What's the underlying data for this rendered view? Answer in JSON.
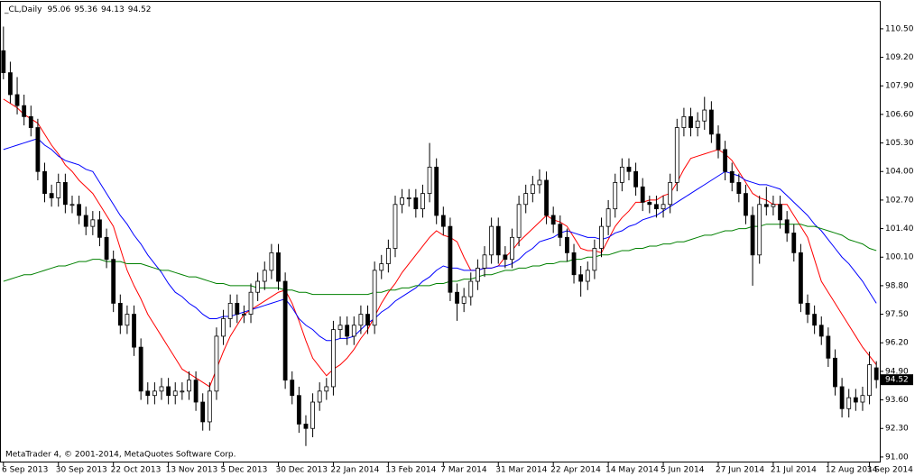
{
  "chart_data": {
    "type": "candlestick",
    "title": "_CL,Daily",
    "footer": "MetaTrader 4, © 2001-2014, MetaQuotes Software Corp.",
    "categories": [
      "6 Sep 2013",
      null,
      null,
      null,
      null,
      null,
      null,
      null,
      "30 Sep 2013",
      null,
      null,
      null,
      null,
      null,
      null,
      null,
      "22 Oct 2013",
      null,
      null,
      null,
      null,
      null,
      null,
      null,
      "13 Nov 2013",
      null,
      null,
      null,
      null,
      null,
      null,
      null,
      "5 Dec 2013",
      null,
      null,
      null,
      null,
      null,
      null,
      null,
      "30 Dec 2013",
      null,
      null,
      null,
      null,
      null,
      null,
      null,
      "22 Jan 2014",
      null,
      null,
      null,
      null,
      null,
      null,
      null,
      "13 Feb 2014",
      null,
      null,
      null,
      null,
      null,
      null,
      null,
      "7 Mar 2014",
      null,
      null,
      null,
      null,
      null,
      null,
      null,
      "31 Mar 2014",
      null,
      null,
      null,
      null,
      null,
      null,
      null,
      "22 Apr 2014",
      null,
      null,
      null,
      null,
      null,
      null,
      null,
      "14 May 2014",
      null,
      null,
      null,
      null,
      null,
      null,
      null,
      "5 Jun 2014",
      null,
      null,
      null,
      null,
      null,
      null,
      null,
      "27 Jun 2014",
      null,
      null,
      null,
      null,
      null,
      null,
      null,
      "21 Jul 2014",
      null,
      null,
      null,
      null,
      null,
      null,
      null,
      "12 Aug 2014",
      null,
      null,
      null,
      null,
      null,
      "3 Sep 2014",
      null
    ],
    "candles": [
      [
        109.5,
        110.6,
        108.2,
        108.5
      ],
      [
        108.5,
        109,
        107.1,
        107.5
      ],
      [
        107.5,
        108.3,
        106.6,
        107
      ],
      [
        107,
        107.5,
        106.1,
        106.5
      ],
      [
        106.5,
        107,
        105.6,
        106
      ],
      [
        106,
        106.4,
        103.6,
        104
      ],
      [
        104,
        104.4,
        102.6,
        103
      ],
      [
        103,
        103.4,
        102.4,
        102.8
      ],
      [
        102.8,
        103.9,
        102.4,
        103.5
      ],
      [
        103.5,
        103.9,
        102.1,
        102.5
      ],
      [
        102.5,
        102.9,
        102.1,
        102.5
      ],
      [
        102.5,
        102.9,
        101.6,
        102
      ],
      [
        102,
        102.4,
        101.1,
        101.5
      ],
      [
        101.5,
        102.2,
        101.1,
        101.8
      ],
      [
        101.8,
        102.2,
        100.6,
        101
      ],
      [
        101,
        101.4,
        99.6,
        100
      ],
      [
        100,
        100.4,
        97.6,
        98
      ],
      [
        98,
        98.4,
        96.6,
        97
      ],
      [
        97,
        97.9,
        96.6,
        97.5
      ],
      [
        97.5,
        97.9,
        95.6,
        96
      ],
      [
        96,
        96.4,
        93.6,
        94
      ],
      [
        94,
        94.4,
        93.4,
        93.8
      ],
      [
        93.8,
        94.4,
        93.4,
        94
      ],
      [
        94,
        94.6,
        93.6,
        94.2
      ],
      [
        94.2,
        94.6,
        93.4,
        93.8
      ],
      [
        93.8,
        94.4,
        93.4,
        94
      ],
      [
        94,
        94.4,
        93.6,
        94
      ],
      [
        94,
        94.9,
        93.6,
        94.5
      ],
      [
        94.5,
        94.9,
        93.1,
        93.5
      ],
      [
        93.5,
        93.9,
        92.2,
        92.6
      ],
      [
        92.6,
        94.4,
        92.2,
        94
      ],
      [
        94,
        96.9,
        93.6,
        96.5
      ],
      [
        96.5,
        97.7,
        96.1,
        97.3
      ],
      [
        97.3,
        98.4,
        96.9,
        98
      ],
      [
        98,
        98.4,
        97.1,
        97.5
      ],
      [
        97.5,
        97.9,
        97.1,
        97.5
      ],
      [
        97.5,
        98.9,
        97.1,
        98.5
      ],
      [
        98.5,
        99.4,
        98.1,
        99
      ],
      [
        99,
        99.9,
        98.6,
        99.5
      ],
      [
        99.5,
        100.7,
        99.1,
        100.3
      ],
      [
        100.3,
        100.7,
        98.6,
        99
      ],
      [
        99,
        99.4,
        94.1,
        94.5
      ],
      [
        94.5,
        94.9,
        93.4,
        93.8
      ],
      [
        93.8,
        94.2,
        92.1,
        92.5
      ],
      [
        92.5,
        92.9,
        91.5,
        92.3
      ],
      [
        92.3,
        93.9,
        91.9,
        93.5
      ],
      [
        93.5,
        94.4,
        93.1,
        94
      ],
      [
        94,
        94.6,
        93.6,
        94.2
      ],
      [
        94.2,
        97.2,
        93.8,
        96.8
      ],
      [
        96.8,
        97.4,
        96.4,
        97
      ],
      [
        97,
        97.4,
        96.1,
        96.5
      ],
      [
        96.5,
        97.4,
        96.1,
        97
      ],
      [
        97,
        97.9,
        96.6,
        97.5
      ],
      [
        97.5,
        97.9,
        96.6,
        97
      ],
      [
        97,
        99.9,
        96.6,
        99.5
      ],
      [
        99.5,
        100.2,
        99.1,
        99.8
      ],
      [
        99.8,
        100.9,
        99.4,
        100.5
      ],
      [
        100.5,
        102.9,
        100.1,
        102.5
      ],
      [
        102.5,
        103.2,
        102.1,
        102.8
      ],
      [
        102.8,
        103.2,
        102.4,
        102.8
      ],
      [
        102.8,
        103.2,
        101.9,
        102.3
      ],
      [
        102.3,
        103.4,
        101.9,
        103
      ],
      [
        103,
        105.3,
        102.6,
        104.2
      ],
      [
        104.2,
        104.6,
        101.6,
        102
      ],
      [
        102,
        102.4,
        101.1,
        101.5
      ],
      [
        101.5,
        101.9,
        98.1,
        98.5
      ],
      [
        98.5,
        98.9,
        97.2,
        98
      ],
      [
        98,
        98.7,
        97.6,
        98.3
      ],
      [
        98.3,
        99.4,
        97.9,
        99
      ],
      [
        99,
        100,
        98.6,
        99.6
      ],
      [
        99.6,
        100.6,
        99.2,
        100.2
      ],
      [
        100.2,
        101.9,
        99.8,
        101.5
      ],
      [
        101.5,
        101.9,
        99.8,
        100.2
      ],
      [
        100.2,
        100.6,
        99.6,
        100
      ],
      [
        100,
        101.4,
        99.6,
        101
      ],
      [
        101,
        102.9,
        100.6,
        102.5
      ],
      [
        102.5,
        103.4,
        102.1,
        103
      ],
      [
        103,
        103.8,
        102.6,
        103.4
      ],
      [
        103.4,
        104.1,
        103,
        103.6
      ],
      [
        103.6,
        104,
        101.6,
        102
      ],
      [
        102,
        102.4,
        101.2,
        101.6
      ],
      [
        101.6,
        102,
        100.6,
        101
      ],
      [
        101,
        101.4,
        99.9,
        100.3
      ],
      [
        100.3,
        100.7,
        98.9,
        99.3
      ],
      [
        99.3,
        99.7,
        98.3,
        99
      ],
      [
        99,
        99.9,
        98.6,
        99.5
      ],
      [
        99.5,
        100.9,
        99.1,
        100.5
      ],
      [
        100.5,
        101.9,
        100.1,
        101.5
      ],
      [
        101.5,
        102.7,
        101.1,
        102.3
      ],
      [
        102.3,
        103.9,
        101.9,
        103.5
      ],
      [
        103.5,
        104.6,
        103.1,
        104.2
      ],
      [
        104.2,
        104.6,
        103.6,
        104
      ],
      [
        104,
        104.4,
        102.9,
        103.3
      ],
      [
        103.3,
        103.7,
        102.2,
        102.6
      ],
      [
        102.6,
        102.9,
        102.1,
        102.5
      ],
      [
        102.5,
        102.9,
        101.9,
        102.3
      ],
      [
        102.3,
        102.9,
        101.9,
        102.5
      ],
      [
        102.5,
        103.9,
        102.1,
        103.5
      ],
      [
        103.5,
        106.4,
        103.1,
        106
      ],
      [
        106,
        106.9,
        105.6,
        106.5
      ],
      [
        106.5,
        106.9,
        105.6,
        106
      ],
      [
        106,
        106.7,
        105.6,
        106.3
      ],
      [
        106.3,
        107.4,
        105.9,
        106.8
      ],
      [
        106.8,
        107.2,
        105.3,
        105.7
      ],
      [
        105.7,
        106.1,
        104.6,
        105
      ],
      [
        105,
        105.4,
        103.6,
        104
      ],
      [
        104,
        104.4,
        103.1,
        103.5
      ],
      [
        103.5,
        103.9,
        102.6,
        103
      ],
      [
        103,
        103.4,
        101.6,
        102
      ],
      [
        102,
        102.4,
        98.8,
        100.2
      ],
      [
        100.2,
        102.9,
        99.8,
        102.5
      ],
      [
        102.5,
        103.3,
        102,
        102.4
      ],
      [
        102.4,
        102.9,
        102,
        102.5
      ],
      [
        102.5,
        102.9,
        101.4,
        101.8
      ],
      [
        101.8,
        102.2,
        100.8,
        101.2
      ],
      [
        101.2,
        101.6,
        99.9,
        100.3
      ],
      [
        100.3,
        100.7,
        97.6,
        98
      ],
      [
        98,
        98.4,
        97.1,
        97.5
      ],
      [
        97.5,
        97.9,
        96.6,
        97
      ],
      [
        97,
        97.4,
        96.1,
        96.5
      ],
      [
        96.5,
        96.9,
        95.1,
        95.5
      ],
      [
        95.5,
        95.9,
        93.8,
        94.2
      ],
      [
        94.2,
        94.6,
        92.8,
        93.2
      ],
      [
        93.2,
        94.1,
        92.8,
        93.7
      ],
      [
        93.7,
        94.1,
        93.1,
        93.5
      ],
      [
        93.5,
        94.2,
        93.1,
        93.8
      ],
      [
        93.8,
        95.8,
        93.4,
        95.2
      ],
      [
        95.06,
        95.36,
        94.13,
        94.52
      ]
    ],
    "series": [
      {
        "color": "#ff0000",
        "values": [
          107.3,
          107.1,
          106.9,
          106.6,
          106.4,
          106.2,
          105.7,
          105.2,
          104.8,
          104.3,
          104,
          103.6,
          103.3,
          103,
          102.5,
          102,
          101.5,
          100.5,
          99.5,
          98.8,
          98.2,
          97.5,
          97,
          96.5,
          96,
          95.5,
          95,
          94.8,
          94.6,
          94.4,
          94.2,
          95,
          95.8,
          96.5,
          97,
          97.5,
          97.7,
          97.9,
          98.1,
          98.3,
          98.5,
          98.6,
          98,
          97.2,
          96.3,
          95.5,
          95.1,
          94.7,
          95,
          95.2,
          95.5,
          95.9,
          96.4,
          96.8,
          97.4,
          98,
          98.5,
          98.9,
          99.4,
          99.8,
          100.2,
          100.6,
          101,
          101.3,
          101.1,
          101,
          100.8,
          100.1,
          99.5,
          99.5,
          99.6,
          99.6,
          99.7,
          100.1,
          100.4,
          100.8,
          101.1,
          101.4,
          101.7,
          102,
          101.8,
          101.7,
          101.5,
          101,
          100.5,
          100.4,
          100.4,
          100.3,
          100.9,
          101.5,
          101.9,
          102.2,
          102.6,
          102.6,
          102.7,
          102.7,
          102.9,
          103,
          103.5,
          104.1,
          104.6,
          104.7,
          104.8,
          104.9,
          105,
          104.8,
          104.5,
          104,
          103.5,
          103,
          102.8,
          102.7,
          102.5,
          102.5,
          102.5,
          102,
          101.5,
          101,
          100,
          99,
          98.5,
          98,
          97.5,
          97,
          96.5,
          96,
          95.6,
          95.2
        ]
      },
      {
        "color": "#0000ff",
        "values": [
          105,
          105.1,
          105.2,
          105.3,
          105.4,
          105.5,
          105.2,
          105,
          104.7,
          104.5,
          104.4,
          104.3,
          104.1,
          104,
          103.5,
          103,
          102.5,
          102,
          101.6,
          101.1,
          100.7,
          100.2,
          99.8,
          99.4,
          98.9,
          98.5,
          98.3,
          98,
          97.8,
          97.5,
          97.3,
          97.3,
          97.4,
          97.4,
          97.5,
          97.6,
          97.7,
          97.8,
          97.9,
          98,
          98.1,
          98.2,
          97.8,
          97.3,
          97,
          96.8,
          96.5,
          96.3,
          96.3,
          96.4,
          96.4,
          96.5,
          96.8,
          97.1,
          97.3,
          97.6,
          97.8,
          98.1,
          98.3,
          98.5,
          98.7,
          99,
          99.2,
          99.5,
          99.7,
          99.6,
          99.6,
          99.5,
          99.5,
          99.5,
          99.6,
          99.6,
          99.7,
          99.7,
          99.8,
          100,
          100.3,
          100.5,
          100.8,
          100.9,
          101,
          101.2,
          101.3,
          101.2,
          101.1,
          101,
          101,
          100.9,
          101,
          101.2,
          101.3,
          101.5,
          101.6,
          101.8,
          101.9,
          102,
          102.2,
          102.4,
          102.6,
          102.8,
          103,
          103.2,
          103.4,
          103.6,
          103.8,
          104,
          103.9,
          103.8,
          103.6,
          103.5,
          103.4,
          103.4,
          103.3,
          103.2,
          102.9,
          102.6,
          102.3,
          102,
          101.6,
          101.3,
          100.9,
          100.5,
          100.1,
          99.8,
          99.4,
          99,
          98.5,
          98
        ]
      },
      {
        "color": "#008000",
        "values": [
          99,
          99.1,
          99.2,
          99.3,
          99.3,
          99.4,
          99.5,
          99.6,
          99.7,
          99.7,
          99.8,
          99.9,
          99.9,
          100,
          100,
          99.9,
          99.9,
          99.9,
          99.8,
          99.8,
          99.8,
          99.7,
          99.6,
          99.5,
          99.5,
          99.4,
          99.3,
          99.2,
          99.2,
          99.1,
          99,
          98.9,
          98.9,
          98.8,
          98.8,
          98.8,
          98.8,
          98.7,
          98.7,
          98.7,
          98.7,
          98.6,
          98.6,
          98.5,
          98.5,
          98.4,
          98.4,
          98.4,
          98.4,
          98.4,
          98.4,
          98.4,
          98.4,
          98.4,
          98.5,
          98.5,
          98.6,
          98.6,
          98.7,
          98.7,
          98.8,
          98.8,
          98.8,
          98.9,
          98.9,
          99,
          99,
          99.1,
          99.1,
          99.2,
          99.3,
          99.3,
          99.4,
          99.5,
          99.5,
          99.6,
          99.6,
          99.7,
          99.7,
          99.8,
          99.8,
          99.9,
          99.9,
          100,
          100,
          100.1,
          100.1,
          100.2,
          100.2,
          100.3,
          100.4,
          100.4,
          100.5,
          100.5,
          100.6,
          100.6,
          100.7,
          100.7,
          100.8,
          100.8,
          100.9,
          101,
          101.1,
          101.1,
          101.2,
          101.3,
          101.3,
          101.4,
          101.4,
          101.5,
          101.5,
          101.6,
          101.6,
          101.6,
          101.6,
          101.6,
          101.6,
          101.5,
          101.5,
          101.4,
          101.3,
          101.2,
          101.1,
          100.9,
          100.8,
          100.7,
          100.5,
          100.4
        ]
      }
    ],
    "ylim": [
      90.75,
      111.81
    ],
    "yticks": [
      {
        "value": 91,
        "label": "91.00"
      },
      {
        "value": 92.3,
        "label": "92.30"
      },
      {
        "value": 93.6,
        "label": "93.60"
      },
      {
        "value": 94.9,
        "label": "94.90"
      },
      {
        "value": 96.2,
        "label": "96.20"
      },
      {
        "value": 97.5,
        "label": "97.50"
      },
      {
        "value": 98.8,
        "label": "98.80"
      },
      {
        "value": 100.1,
        "label": "100.10"
      },
      {
        "value": 101.4,
        "label": "101.40"
      },
      {
        "value": 102.7,
        "label": "102.70"
      },
      {
        "value": 104,
        "label": "104.00"
      },
      {
        "value": 105.3,
        "label": "105.30"
      },
      {
        "value": 106.6,
        "label": "106.60"
      },
      {
        "value": 107.9,
        "label": "107.90"
      },
      {
        "value": 109.2,
        "label": "109.20"
      },
      {
        "value": 110.5,
        "label": "110.50"
      }
    ]
  }
}
